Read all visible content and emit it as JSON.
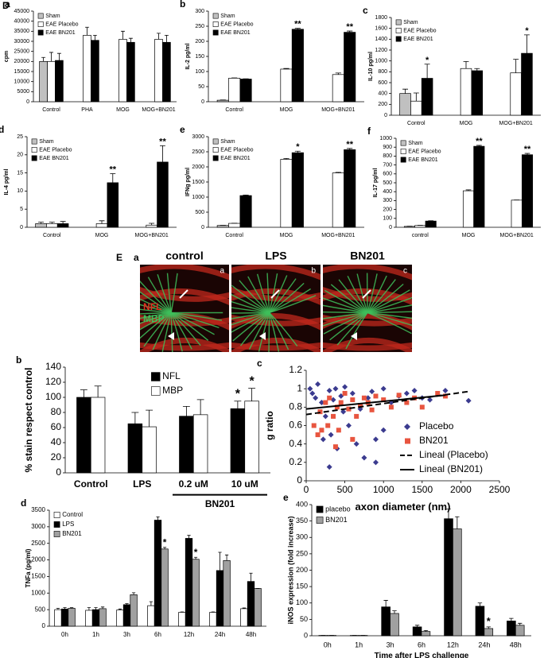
{
  "figure_label": "D",
  "section_label": "E",
  "micrographs": {
    "panel": "a",
    "titles": [
      "control",
      "LPS",
      "BN201"
    ],
    "sublabels": [
      "a",
      "b",
      "c"
    ],
    "stains": [
      "NFL",
      "MBP"
    ]
  },
  "chart_data": [
    {
      "type": "bar",
      "panel": "a",
      "ylabel": "cpm",
      "categories": [
        "Control",
        "PHA",
        "MOG",
        "MOG+BN201"
      ],
      "ylim": [
        0,
        45000
      ],
      "yticks": [
        0,
        5000,
        10000,
        15000,
        20000,
        25000,
        30000,
        35000,
        40000,
        45000
      ],
      "legend": "upper left",
      "series": [
        {
          "name": "Sham",
          "color": "#c0c0c0",
          "values": [
            20000,
            null,
            null,
            null
          ],
          "errors": [
            2000,
            null,
            null,
            null
          ]
        },
        {
          "name": "EAE Placebo",
          "color": "#ffffff",
          "values": [
            20000,
            33000,
            31000,
            31000
          ],
          "errors": [
            4500,
            4000,
            4000,
            3000
          ]
        },
        {
          "name": "EAE BN201",
          "color": "#000000",
          "values": [
            20500,
            30500,
            29500,
            29500
          ],
          "errors": [
            3500,
            2500,
            2000,
            3500
          ]
        }
      ]
    },
    {
      "type": "bar",
      "panel": "b",
      "ylabel": "IL-2 pg/ml",
      "categories": [
        "Control",
        "MOG",
        "MOG+BN201"
      ],
      "ylim": [
        0,
        300
      ],
      "yticks": [
        0,
        50,
        100,
        150,
        200,
        250,
        300
      ],
      "legend": "upper left",
      "series": [
        {
          "name": "Sham",
          "color": "#c0c0c0",
          "values": [
            5,
            null,
            null
          ],
          "errors": [
            1,
            null,
            null
          ]
        },
        {
          "name": "EAE Placebo",
          "color": "#ffffff",
          "values": [
            78,
            108,
            90
          ],
          "errors": [
            1,
            2,
            5
          ]
        },
        {
          "name": "EAE BN201",
          "color": "#000000",
          "values": [
            75,
            240,
            230
          ],
          "errors": [
            1,
            3,
            4
          ],
          "annotations": [
            null,
            "**",
            "**"
          ]
        }
      ]
    },
    {
      "type": "bar",
      "panel": "c",
      "ylabel": "IL-10 pg/ml",
      "categories": [
        "Control",
        "MOG",
        "MOG+BN201"
      ],
      "ylim": [
        0,
        1800
      ],
      "yticks": [
        0,
        200,
        400,
        600,
        800,
        1000,
        1200,
        1400,
        1600,
        1800
      ],
      "legend": "upper left",
      "series": [
        {
          "name": "Sham",
          "color": "#c0c0c0",
          "values": [
            400,
            null,
            null
          ],
          "errors": [
            80,
            null,
            null
          ]
        },
        {
          "name": "EAE Placebo",
          "color": "#ffffff",
          "values": [
            260,
            860,
            780
          ],
          "errors": [
            150,
            130,
            250
          ]
        },
        {
          "name": "EAE BN201",
          "color": "#000000",
          "values": [
            680,
            820,
            1140
          ],
          "errors": [
            260,
            40,
            340
          ],
          "annotations": [
            "*",
            null,
            "*"
          ]
        }
      ]
    },
    {
      "type": "bar",
      "panel": "d",
      "ylabel": "IL-4 pg/ml",
      "categories": [
        "Control",
        "MOG",
        "MOG+BN201"
      ],
      "ylim": [
        0,
        25
      ],
      "yticks": [
        0,
        5,
        10,
        15,
        20,
        25
      ],
      "legend": "upper left",
      "series": [
        {
          "name": "Sham",
          "color": "#c0c0c0",
          "values": [
            1,
            null,
            null
          ],
          "errors": [
            0.4,
            null,
            null
          ]
        },
        {
          "name": "EAE Placebo",
          "color": "#ffffff",
          "values": [
            1,
            1,
            0.6
          ],
          "errors": [
            0.4,
            0.8,
            0.5
          ]
        },
        {
          "name": "EAE BN201",
          "color": "#000000",
          "values": [
            1,
            12.3,
            18
          ],
          "errors": [
            0.6,
            2.5,
            4.5
          ],
          "annotations": [
            null,
            "**",
            "**"
          ]
        }
      ]
    },
    {
      "type": "bar",
      "panel": "e",
      "ylabel": "IFNg pg/ml",
      "categories": [
        "Control",
        "MOG",
        "MOG+BN201"
      ],
      "ylim": [
        0,
        3000
      ],
      "yticks": [
        0,
        500,
        1000,
        1500,
        2000,
        2500,
        3000
      ],
      "legend": "upper left",
      "series": [
        {
          "name": "Sham",
          "color": "#c0c0c0",
          "values": [
            60,
            null,
            null
          ],
          "errors": [
            5,
            null,
            null
          ]
        },
        {
          "name": "EAE Placebo",
          "color": "#ffffff",
          "values": [
            130,
            2250,
            1800
          ],
          "errors": [
            5,
            30,
            20
          ]
        },
        {
          "name": "EAE BN201",
          "color": "#000000",
          "values": [
            1050,
            2470,
            2570
          ],
          "errors": [
            20,
            50,
            40
          ],
          "annotations": [
            null,
            "*",
            "**"
          ]
        }
      ]
    },
    {
      "type": "bar",
      "panel": "f",
      "ylabel": "IL-17 pg/ml",
      "categories": [
        "control",
        "MOG",
        "MOG+BN201"
      ],
      "ylim": [
        0,
        1000
      ],
      "yticks": [
        0,
        100,
        200,
        300,
        400,
        500,
        600,
        700,
        800,
        900,
        1000
      ],
      "legend": "upper left",
      "series": [
        {
          "name": "Sham",
          "color": "#c0c0c0",
          "values": [
            10,
            null,
            null
          ],
          "errors": [
            2,
            null,
            null
          ]
        },
        {
          "name": "EAE Placebo",
          "color": "#ffffff",
          "values": [
            20,
            410,
            305
          ],
          "errors": [
            2,
            10,
            2
          ]
        },
        {
          "name": "EAE BN201",
          "color": "#000000",
          "values": [
            70,
            910,
            815
          ],
          "errors": [
            3,
            10,
            15
          ],
          "annotations": [
            null,
            "**",
            "**"
          ]
        }
      ]
    },
    {
      "type": "bar",
      "panel": "b",
      "ylabel": "% stain respect control",
      "categories": [
        "Control",
        "LPS",
        "0.2 uM",
        "10 uM"
      ],
      "group_label": "BN201",
      "ylim": [
        0,
        140
      ],
      "yticks": [
        0,
        20,
        40,
        60,
        80,
        100,
        120,
        140
      ],
      "legend": "upper center",
      "series": [
        {
          "name": "NFL",
          "color": "#000000",
          "values": [
            100,
            65,
            75,
            85
          ],
          "errors": [
            10,
            15,
            13,
            10
          ],
          "annotations": [
            null,
            null,
            null,
            "*"
          ]
        },
        {
          "name": "MBP",
          "color": "#ffffff",
          "values": [
            100,
            61,
            77,
            95
          ],
          "errors": [
            15,
            22,
            20,
            17
          ],
          "annotations": [
            null,
            null,
            null,
            "*"
          ]
        }
      ]
    },
    {
      "type": "scatter",
      "panel": "c",
      "ylabel": "g ratio",
      "xlabel": "axon diameter (nm)",
      "xlim": [
        0,
        2500
      ],
      "xticks": [
        0,
        500,
        1000,
        1500,
        2000,
        2500
      ],
      "ylim": [
        0,
        1.2
      ],
      "yticks": [
        0,
        0.2,
        0.4,
        0.6,
        0.8,
        1,
        1.2
      ],
      "legend": "lower right",
      "series": [
        {
          "name": "Placebo",
          "color": "#3b3b8f",
          "marker": "diamond",
          "x": [
            50,
            80,
            120,
            150,
            200,
            220,
            250,
            300,
            320,
            350,
            380,
            400,
            450,
            480,
            500,
            550,
            600,
            650,
            700,
            750,
            800,
            850,
            900,
            1000,
            1100,
            1200,
            1300,
            1400,
            1500,
            1600,
            1800,
            2100,
            900,
            300,
            1000
          ],
          "values": [
            1,
            0.95,
            0.9,
            1.05,
            0.85,
            0.45,
            0.7,
            0.98,
            0.5,
            0.88,
            1,
            0.35,
            0.92,
            0.75,
            1.02,
            0.6,
            0.95,
            0.4,
            0.78,
            0.25,
            0.9,
            0.97,
            0.45,
            1,
            0.85,
            0.92,
            0.95,
            0.98,
            0.9,
            0.88,
            0.98,
            0.87,
            0.2,
            0.15,
            0.55
          ]
        },
        {
          "name": "BN201",
          "color": "#e8553f",
          "marker": "square",
          "x": [
            100,
            150,
            180,
            200,
            250,
            280,
            300,
            350,
            400,
            420,
            450,
            500,
            550,
            600,
            650,
            700,
            750,
            800,
            850,
            900,
            1000,
            1100,
            1200,
            1300,
            1400,
            1500,
            1700,
            1800,
            380,
            600
          ],
          "values": [
            0.6,
            0.5,
            0.75,
            0.55,
            0.85,
            0.6,
            0.9,
            0.7,
            0.8,
            0.55,
            0.85,
            0.95,
            0.78,
            0.88,
            0.7,
            0.82,
            0.9,
            0.85,
            0.77,
            0.92,
            0.88,
            0.8,
            0.93,
            0.85,
            0.9,
            0.8,
            0.95,
            0.92,
            0.37,
            0.45
          ]
        },
        {
          "name": "Lineal (Placebo)",
          "color": "#000000",
          "line": "dashed",
          "x": [
            0,
            2100
          ],
          "values": [
            0.72,
            0.97
          ]
        },
        {
          "name": "Lineal (BN201)",
          "color": "#000000",
          "line": "solid",
          "x": [
            0,
            1800
          ],
          "values": [
            0.78,
            0.93
          ]
        }
      ]
    },
    {
      "type": "bar",
      "panel": "d",
      "ylabel": "TNFa (pg/ml)",
      "categories": [
        "0h",
        "1h",
        "3h",
        "6h",
        "12h",
        "24h",
        "48h"
      ],
      "ylim": [
        0,
        3500
      ],
      "yticks": [
        0,
        500,
        1000,
        1500,
        2000,
        2500,
        3000,
        3500
      ],
      "legend": "upper left",
      "series": [
        {
          "name": "Control",
          "color": "#ffffff",
          "values": [
            500,
            480,
            490,
            620,
            420,
            420,
            530
          ],
          "errors": [
            40,
            80,
            30,
            120,
            10,
            10,
            20
          ]
        },
        {
          "name": "LPS",
          "color": "#000000",
          "values": [
            520,
            500,
            650,
            3200,
            2650,
            1680,
            1350
          ],
          "errors": [
            40,
            60,
            30,
            100,
            90,
            550,
            250
          ]
        },
        {
          "name": "BN201",
          "color": "#a0a0a0",
          "values": [
            540,
            530,
            950,
            2330,
            2020,
            1980,
            1140
          ],
          "errors": [
            20,
            50,
            60,
            50,
            60,
            170,
            0
          ],
          "annotations": [
            null,
            null,
            null,
            "*",
            "*",
            null,
            null
          ]
        }
      ]
    },
    {
      "type": "bar",
      "panel": "e",
      "ylabel": "iNOS expression (fold increase)",
      "xlabel": "Time after LPS challenge",
      "categories": [
        "0h",
        "1h",
        "3h",
        "6h",
        "12h",
        "24h",
        "48h"
      ],
      "ylim": [
        0,
        400
      ],
      "yticks": [
        0,
        50,
        100,
        150,
        200,
        250,
        300,
        350,
        400
      ],
      "legend": "upper left",
      "series": [
        {
          "name": "placebo",
          "color": "#000000",
          "values": [
            1,
            1,
            88,
            27,
            357,
            90,
            45
          ],
          "errors": [
            0,
            0,
            20,
            5,
            30,
            10,
            8
          ]
        },
        {
          "name": "BN201",
          "color": "#a0a0a0",
          "values": [
            1,
            1,
            68,
            13,
            326,
            22,
            32
          ],
          "errors": [
            0,
            0,
            8,
            3,
            37,
            5,
            6
          ],
          "annotations": [
            null,
            null,
            null,
            null,
            null,
            "*",
            null
          ]
        }
      ]
    }
  ]
}
